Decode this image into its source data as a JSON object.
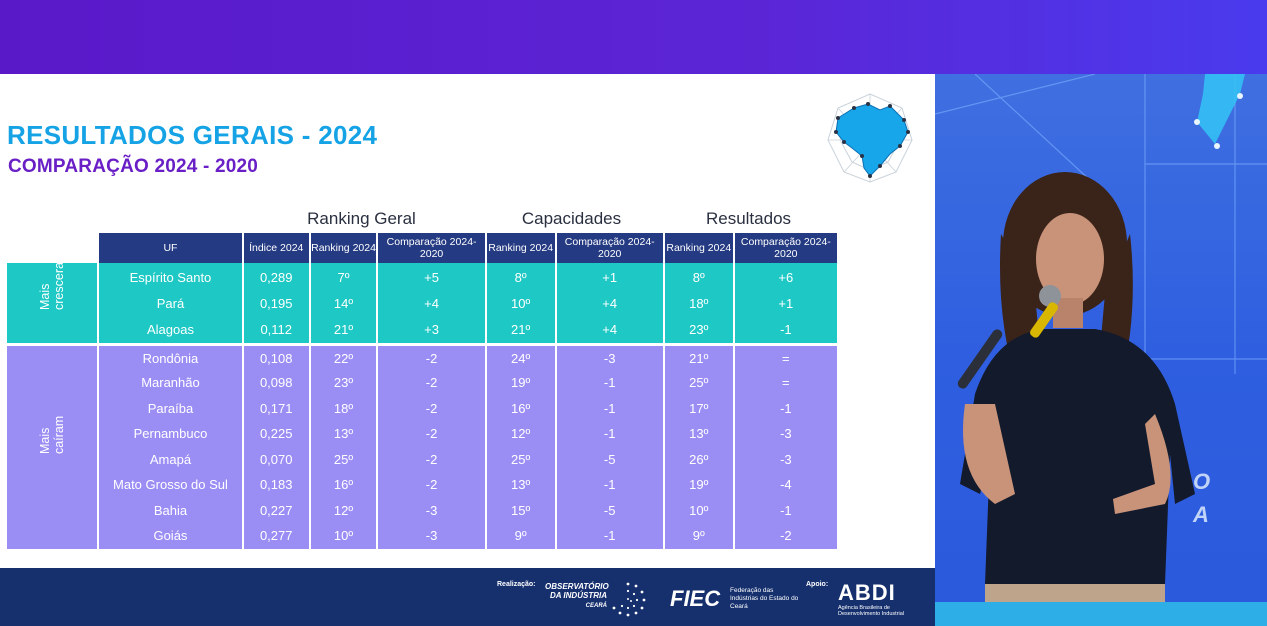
{
  "slide": {
    "title": "RESULTADOS GERAIS - 2024",
    "subtitle": "COMPARAÇÃO 2024 - 2020",
    "group_headings": [
      "Ranking Geral",
      "Capacidades",
      "Resultados"
    ],
    "columns": [
      "UF",
      "Índice 2024",
      "Ranking 2024",
      "Comparação 2024-2020",
      "Ranking 2024",
      "Comparação 2024-2020",
      "Ranking 2024",
      "Comparação 2024-2020"
    ],
    "groups": {
      "up": "Mais cresceram",
      "down": "Mais caíram"
    },
    "rows": [
      {
        "uf": "Espírito Santo",
        "indice": "0,289",
        "rank_geral": "7º",
        "comp_geral": "+5",
        "rank_cap": "8º",
        "comp_cap": "+1",
        "rank_res": "8º",
        "comp_res": "+6"
      },
      {
        "uf": "Pará",
        "indice": "0,195",
        "rank_geral": "14º",
        "comp_geral": "+4",
        "rank_cap": "10º",
        "comp_cap": "+4",
        "rank_res": "18º",
        "comp_res": "+1"
      },
      {
        "uf": "Alagoas",
        "indice": "0,112",
        "rank_geral": "21º",
        "comp_geral": "+3",
        "rank_cap": "21º",
        "comp_cap": "+4",
        "rank_res": "23º",
        "comp_res": "-1"
      },
      {
        "uf": "Rondônia",
        "indice": "0,108",
        "rank_geral": "22º",
        "comp_geral": "-2",
        "rank_cap": "24º",
        "comp_cap": "-3",
        "rank_res": "21º",
        "comp_res": "="
      },
      {
        "uf": "Maranhão",
        "indice": "0,098",
        "rank_geral": "23º",
        "comp_geral": "-2",
        "rank_cap": "19º",
        "comp_cap": "-1",
        "rank_res": "25º",
        "comp_res": "="
      },
      {
        "uf": "Paraíba",
        "indice": "0,171",
        "rank_geral": "18º",
        "comp_geral": "-2",
        "rank_cap": "16º",
        "comp_cap": "-1",
        "rank_res": "17º",
        "comp_res": "-1"
      },
      {
        "uf": "Pernambuco",
        "indice": "0,225",
        "rank_geral": "13º",
        "comp_geral": "-2",
        "rank_cap": "12º",
        "comp_cap": "-1",
        "rank_res": "13º",
        "comp_res": "-3"
      },
      {
        "uf": "Amapá",
        "indice": "0,070",
        "rank_geral": "25º",
        "comp_geral": "-2",
        "rank_cap": "25º",
        "comp_cap": "-5",
        "rank_res": "26º",
        "comp_res": "-3"
      },
      {
        "uf": "Mato Grosso do Sul",
        "indice": "0,183",
        "rank_geral": "16º",
        "comp_geral": "-2",
        "rank_cap": "13º",
        "comp_cap": "-1",
        "rank_res": "19º",
        "comp_res": "-4"
      },
      {
        "uf": "Bahia",
        "indice": "0,227",
        "rank_geral": "12º",
        "comp_geral": "-3",
        "rank_cap": "15º",
        "comp_cap": "-5",
        "rank_res": "10º",
        "comp_res": "-1"
      },
      {
        "uf": "Goiás",
        "indice": "0,277",
        "rank_geral": "10º",
        "comp_geral": "-3",
        "rank_cap": "9º",
        "comp_cap": "-1",
        "rank_res": "9º",
        "comp_res": "-2"
      }
    ],
    "colors": {
      "title": "#16a3e6",
      "subtitle": "#6a1fc6",
      "header": "#243a82",
      "up_band": "#1ec8c4",
      "down_band": "#9a8ef4",
      "footer": "#16306e"
    }
  },
  "footer": {
    "realizacao_label": "Realização:",
    "observatorio": "OBSERVATÓRIO DA INDÚSTRIA",
    "observatorio_sub": "CEARÁ",
    "fiec": "FIEC",
    "fiec_sub": "Federação das Indústrias do Estado do Ceará",
    "apoio_label": "Apoio:",
    "abdi": "ABDI",
    "abdi_sub": "Agência Brasileira de Desenvolvimento Industrial"
  },
  "icons": [
    "brazil-map-radar-logo",
    "speaker-video-feed"
  ]
}
